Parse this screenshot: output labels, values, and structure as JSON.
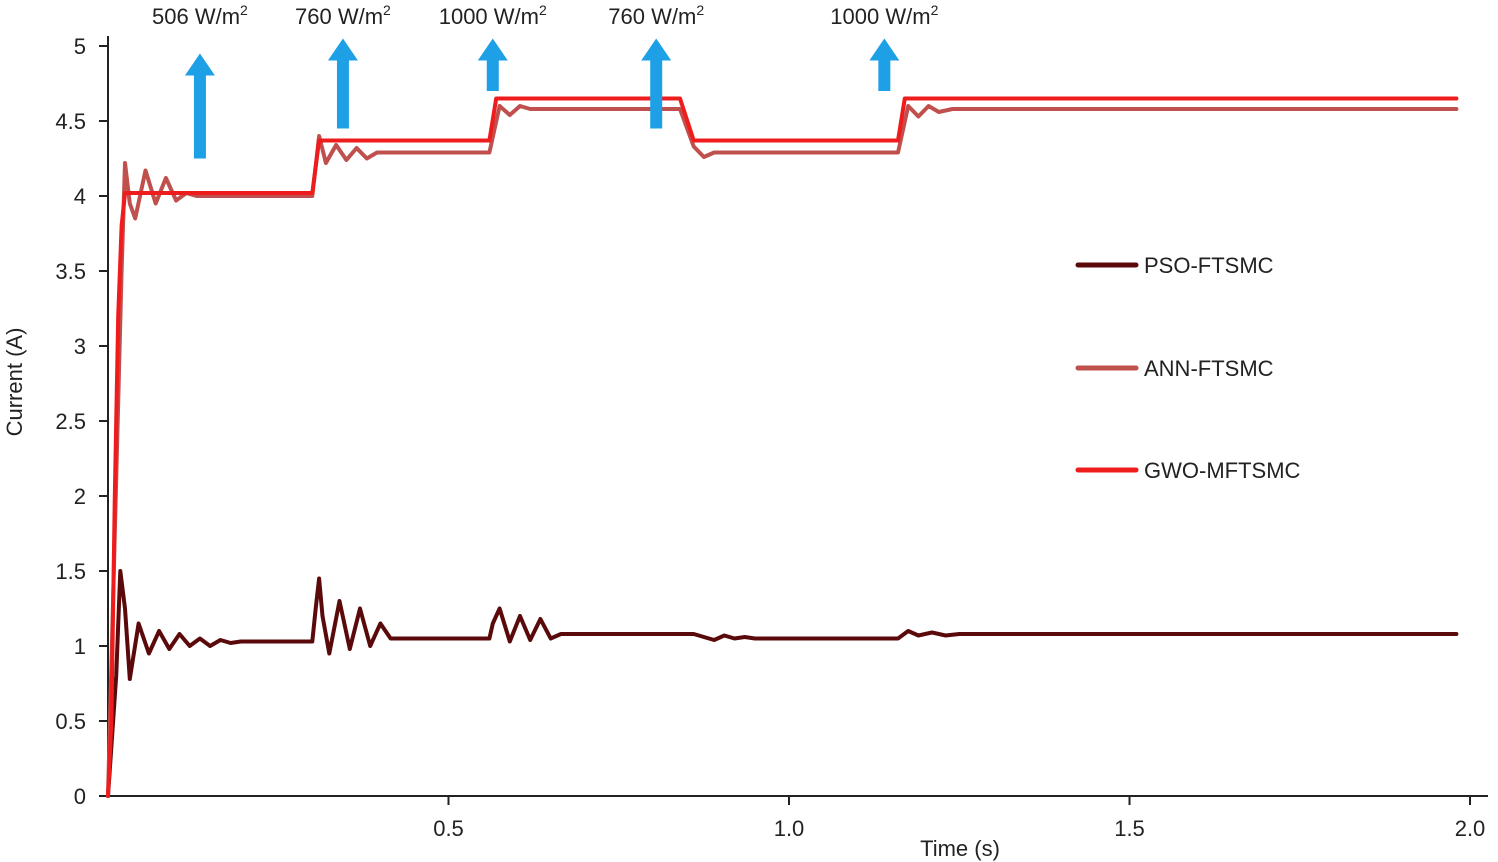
{
  "chart_data": {
    "type": "line",
    "title": "",
    "xlabel": "Time (s)",
    "ylabel": "Current (A)",
    "xlim": [
      0,
      2.0
    ],
    "ylim": [
      0,
      5
    ],
    "xticks": [
      0.5,
      1.0,
      1.5,
      2.0
    ],
    "xtick_labels": [
      "0.5",
      "1.0",
      "1.5",
      "2.0"
    ],
    "yticks": [
      0,
      0.5,
      1,
      1.5,
      2,
      2.5,
      3,
      3.5,
      4,
      4.5,
      5
    ],
    "ytick_labels": [
      "0",
      "0.5",
      "1",
      "1.5",
      "2",
      "2.5",
      "3",
      "3.5",
      "4",
      "4.5",
      "5"
    ],
    "grid": false,
    "legend_position": "right",
    "series": [
      {
        "name": "PSO-FTSMC",
        "color": "#5a0a0a",
        "x": [
          0,
          0.012,
          0.018,
          0.025,
          0.032,
          0.045,
          0.06,
          0.075,
          0.09,
          0.105,
          0.12,
          0.135,
          0.15,
          0.165,
          0.18,
          0.195,
          0.21,
          0.3,
          0.305,
          0.31,
          0.315,
          0.325,
          0.34,
          0.355,
          0.37,
          0.385,
          0.4,
          0.415,
          0.56,
          0.565,
          0.575,
          0.59,
          0.605,
          0.62,
          0.635,
          0.65,
          0.665,
          0.68,
          0.86,
          0.875,
          0.89,
          0.905,
          0.92,
          0.935,
          0.95,
          1.16,
          1.175,
          1.19,
          1.21,
          1.23,
          1.25,
          1.28,
          1.31,
          1.98
        ],
        "y": [
          0,
          0.8,
          1.5,
          1.25,
          0.78,
          1.15,
          0.95,
          1.1,
          0.98,
          1.08,
          1.0,
          1.05,
          1.0,
          1.04,
          1.02,
          1.03,
          1.03,
          1.03,
          1.25,
          1.45,
          1.2,
          0.95,
          1.3,
          0.98,
          1.25,
          1.0,
          1.15,
          1.05,
          1.05,
          1.15,
          1.25,
          1.03,
          1.2,
          1.04,
          1.18,
          1.05,
          1.08,
          1.08,
          1.08,
          1.06,
          1.04,
          1.07,
          1.05,
          1.06,
          1.05,
          1.05,
          1.1,
          1.07,
          1.09,
          1.07,
          1.08,
          1.08,
          1.08,
          1.08
        ]
      },
      {
        "name": "ANN-FTSMC",
        "color": "#c0504d",
        "x": [
          0,
          0.02,
          0.025,
          0.032,
          0.04,
          0.055,
          0.07,
          0.085,
          0.1,
          0.115,
          0.13,
          0.15,
          0.3,
          0.31,
          0.32,
          0.335,
          0.35,
          0.365,
          0.38,
          0.395,
          0.41,
          0.56,
          0.575,
          0.59,
          0.605,
          0.62,
          0.68,
          0.84,
          0.86,
          0.875,
          0.89,
          0.905,
          1.16,
          1.175,
          1.19,
          1.205,
          1.22,
          1.24,
          1.98
        ],
        "y": [
          0,
          3.5,
          4.22,
          3.95,
          3.85,
          4.17,
          3.95,
          4.12,
          3.97,
          4.02,
          4.0,
          4.0,
          4.0,
          4.4,
          4.22,
          4.34,
          4.24,
          4.32,
          4.25,
          4.29,
          4.29,
          4.29,
          4.6,
          4.54,
          4.6,
          4.58,
          4.58,
          4.58,
          4.33,
          4.26,
          4.29,
          4.29,
          4.29,
          4.6,
          4.53,
          4.6,
          4.56,
          4.58,
          4.58
        ]
      },
      {
        "name": "GWO-MFTSMC",
        "color": "#ee1c1c",
        "x": [
          0,
          0.005,
          0.01,
          0.015,
          0.02,
          0.025,
          0.05,
          0.3,
          0.31,
          0.33,
          0.56,
          0.57,
          0.58,
          0.84,
          0.86,
          0.87,
          1.16,
          1.17,
          1.98
        ],
        "y": [
          0,
          0.5,
          2.0,
          3.2,
          3.8,
          4.02,
          4.02,
          4.02,
          4.37,
          4.37,
          4.37,
          4.65,
          4.65,
          4.65,
          4.37,
          4.37,
          4.37,
          4.65,
          4.65
        ]
      }
    ],
    "irradiance_markers": [
      {
        "x": 0.135,
        "tip": 4.25,
        "tail": 4.95,
        "label": "506 W/m",
        "sup": "2"
      },
      {
        "x": 0.345,
        "tip": 4.45,
        "tail": 5.05,
        "label": "760 W/m",
        "sup": "2"
      },
      {
        "x": 0.565,
        "tip": 4.7,
        "tail": 5.05,
        "label": "1000 W/m",
        "sup": "2"
      },
      {
        "x": 0.805,
        "tip": 4.45,
        "tail": 5.05,
        "label": "760 W/m",
        "sup": "2"
      },
      {
        "x": 1.14,
        "tip": 4.7,
        "tail": 5.05,
        "label": "1000 W/m",
        "sup": "2"
      }
    ],
    "arrow_color": "#1ea0e6"
  }
}
